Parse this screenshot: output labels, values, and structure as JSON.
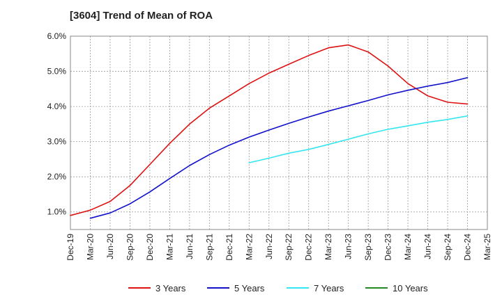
{
  "chart_data": {
    "type": "line",
    "title": "[3604]  Trend of Mean of ROA",
    "xlabel": "",
    "ylabel": "",
    "x_ticks": [
      "Dec-19",
      "Mar-20",
      "Jun-20",
      "Sep-20",
      "Dec-20",
      "Mar-21",
      "Jun-21",
      "Sep-21",
      "Dec-21",
      "Mar-22",
      "Jun-22",
      "Sep-22",
      "Dec-22",
      "Mar-23",
      "Jun-23",
      "Sep-23",
      "Dec-23",
      "Mar-24",
      "Jun-24",
      "Sep-24",
      "Dec-24",
      "Mar-25"
    ],
    "y_ticks": [
      1.0,
      2.0,
      3.0,
      4.0,
      5.0,
      6.0
    ],
    "y_tick_labels": [
      "1.0%",
      "2.0%",
      "3.0%",
      "4.0%",
      "5.0%",
      "6.0%"
    ],
    "ylim": [
      0.5,
      6.0
    ],
    "grid": true,
    "legend_position": "bottom",
    "series": [
      {
        "name": "3 Years",
        "color": "#dd1111",
        "start_index": 0,
        "values": [
          0.9,
          1.05,
          1.3,
          1.75,
          2.35,
          2.95,
          3.5,
          3.95,
          4.3,
          4.65,
          4.95,
          5.2,
          5.45,
          5.67,
          5.75,
          5.55,
          5.15,
          4.65,
          4.3,
          4.12,
          4.07
        ]
      },
      {
        "name": "5 Years",
        "color": "#1111cc",
        "start_index": 1,
        "values": [
          0.82,
          0.97,
          1.23,
          1.57,
          1.95,
          2.32,
          2.63,
          2.9,
          3.13,
          3.33,
          3.52,
          3.7,
          3.87,
          4.02,
          4.17,
          4.33,
          4.46,
          4.58,
          4.68,
          4.82
        ]
      },
      {
        "name": "7 Years",
        "color": "#33e6f0",
        "start_index": 9,
        "values": [
          2.4,
          2.53,
          2.67,
          2.78,
          2.92,
          3.07,
          3.22,
          3.35,
          3.45,
          3.55,
          3.63,
          3.73
        ]
      },
      {
        "name": "10 Years",
        "color": "#228822",
        "start_index": 0,
        "values": []
      }
    ]
  }
}
